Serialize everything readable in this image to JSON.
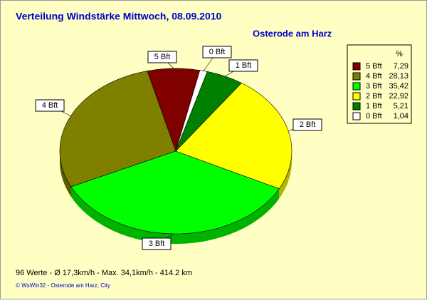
{
  "chart_data": {
    "type": "pie",
    "title": "Verteilung Windstärke  Mittwoch, 08.09.2010",
    "subtitle": "Osterode am Harz",
    "legend_title": "%",
    "categories": [
      "5 Bft",
      "4 Bft",
      "3 Bft",
      "2 Bft",
      "1 Bft",
      "0 Bft"
    ],
    "values": [
      7.29,
      28.13,
      35.42,
      22.92,
      5.21,
      1.04
    ],
    "value_labels": [
      "7,29",
      "28,13",
      "35,42",
      "22,92",
      "5,21",
      "1,04"
    ],
    "colors": [
      "#800000",
      "#808000",
      "#00ff00",
      "#ffff00",
      "#008000",
      "#ffffff"
    ],
    "footer": "96 Werte   -   Ø 17,3km/h  -  Max. 34,1km/h   -   414.2 km",
    "copyright": "© WsWin32  -  Osterode am Harz, City"
  }
}
